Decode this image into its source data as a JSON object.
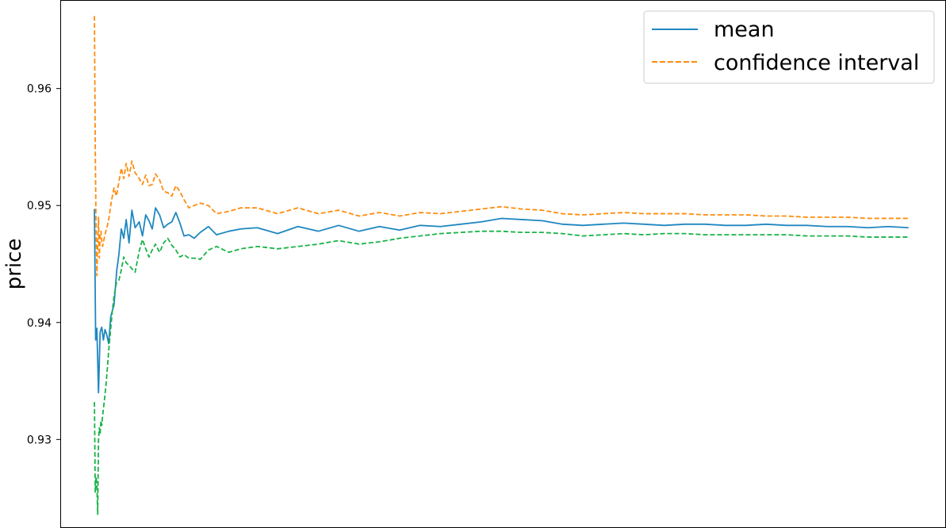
{
  "chart_data": {
    "type": "line",
    "title": "",
    "xlabel": "",
    "ylabel": "price",
    "ylim": [
      0.9225,
      0.9675
    ],
    "xlim": [
      -82,
      2090
    ],
    "yticks": [
      "0.93",
      "0.94",
      "0.95",
      "0.96"
    ],
    "xticks_visible": false,
    "grid": false,
    "legend_placement": "top-right",
    "colors": {
      "mean": "#1f87c0",
      "confidence_interval": "#ff8c0e",
      "lower_interval": "#19b347"
    },
    "series": [
      {
        "name": "mean",
        "style": "solid",
        "x": [
          0,
          3,
          6,
          10,
          14,
          18,
          22,
          26,
          30,
          35,
          40,
          48,
          55,
          60,
          66,
          72,
          78,
          85,
          92,
          100,
          110,
          118,
          126,
          134,
          142,
          150,
          160,
          170,
          180,
          190,
          200,
          210,
          220,
          232,
          245,
          260,
          280,
          300,
          330,
          360,
          400,
          450,
          500,
          550,
          600,
          650,
          700,
          750,
          800,
          850,
          900,
          950,
          1000,
          1050,
          1100,
          1150,
          1200,
          1250,
          1300,
          1350,
          1400,
          1450,
          1500,
          1550,
          1600,
          1650,
          1700,
          1750,
          1800,
          1850,
          1900,
          1950,
          2000
        ],
        "y": [
          0.9497,
          0.9385,
          0.9395,
          0.934,
          0.9392,
          0.9396,
          0.9385,
          0.9394,
          0.939,
          0.9382,
          0.9405,
          0.9415,
          0.9445,
          0.9458,
          0.948,
          0.9472,
          0.9488,
          0.9468,
          0.9496,
          0.9481,
          0.9486,
          0.9474,
          0.9492,
          0.9487,
          0.948,
          0.9498,
          0.9492,
          0.9481,
          0.9484,
          0.9486,
          0.9494,
          0.9485,
          0.9474,
          0.9475,
          0.9472,
          0.9477,
          0.9482,
          0.9475,
          0.9478,
          0.948,
          0.9481,
          0.9476,
          0.9482,
          0.9478,
          0.9483,
          0.9478,
          0.9482,
          0.9479,
          0.9483,
          0.9482,
          0.9484,
          0.9486,
          0.9489,
          0.9488,
          0.9487,
          0.9484,
          0.9483,
          0.9484,
          0.9485,
          0.9484,
          0.9483,
          0.9484,
          0.9484,
          0.9483,
          0.9483,
          0.9484,
          0.9483,
          0.9483,
          0.9482,
          0.9482,
          0.9481,
          0.9482,
          0.9481
        ]
      },
      {
        "name": "confidence interval",
        "style": "dashed",
        "x": [
          0,
          2,
          4,
          6,
          8,
          10,
          12,
          14,
          16,
          18,
          20,
          24,
          28,
          32,
          36,
          40,
          44,
          48,
          54,
          60,
          66,
          72,
          78,
          85,
          92,
          100,
          110,
          118,
          126,
          134,
          142,
          150,
          160,
          170,
          180,
          190,
          200,
          210,
          220,
          232,
          245,
          260,
          280,
          300,
          330,
          360,
          400,
          450,
          500,
          550,
          600,
          650,
          700,
          750,
          800,
          850,
          900,
          950,
          1000,
          1050,
          1100,
          1150,
          1200,
          1250,
          1300,
          1350,
          1400,
          1450,
          1500,
          1550,
          1600,
          1650,
          1700,
          1750,
          1800,
          1850,
          1900,
          1950,
          2000
        ],
        "y": [
          0.9662,
          0.955,
          0.948,
          0.944,
          0.9468,
          0.949,
          0.9455,
          0.9475,
          0.9478,
          0.947,
          0.9465,
          0.9472,
          0.9478,
          0.9483,
          0.949,
          0.95,
          0.9508,
          0.9515,
          0.9508,
          0.952,
          0.9532,
          0.9523,
          0.9536,
          0.9525,
          0.9538,
          0.9528,
          0.9523,
          0.9518,
          0.9526,
          0.9517,
          0.9518,
          0.9527,
          0.9522,
          0.9512,
          0.9511,
          0.9508,
          0.9517,
          0.9512,
          0.9505,
          0.9498,
          0.95,
          0.9502,
          0.95,
          0.9493,
          0.9495,
          0.9498,
          0.9498,
          0.9493,
          0.9498,
          0.9493,
          0.9496,
          0.9491,
          0.9494,
          0.9491,
          0.9494,
          0.9493,
          0.9495,
          0.9497,
          0.9499,
          0.9497,
          0.9496,
          0.9493,
          0.9492,
          0.9493,
          0.9494,
          0.9493,
          0.9493,
          0.9493,
          0.9492,
          0.9492,
          0.9492,
          0.9491,
          0.9491,
          0.949,
          0.949,
          0.949,
          0.9489,
          0.9489,
          0.9489
        ]
      },
      {
        "style": "dashed",
        "x": [
          0,
          2,
          4,
          6,
          8,
          10,
          12,
          14,
          16,
          18,
          20,
          24,
          28,
          32,
          36,
          40,
          44,
          48,
          54,
          60,
          66,
          72,
          78,
          85,
          92,
          100,
          110,
          118,
          126,
          134,
          142,
          150,
          160,
          170,
          180,
          190,
          200,
          210,
          220,
          232,
          245,
          260,
          280,
          300,
          330,
          360,
          400,
          450,
          500,
          550,
          600,
          650,
          700,
          750,
          800,
          850,
          900,
          950,
          1000,
          1050,
          1100,
          1150,
          1200,
          1250,
          1300,
          1350,
          1400,
          1450,
          1500,
          1550,
          1600,
          1650,
          1700,
          1750,
          1800,
          1850,
          1900,
          1950,
          2000
        ],
        "y": [
          0.9332,
          0.9255,
          0.9268,
          0.9262,
          0.9236,
          0.93,
          0.931,
          0.9305,
          0.9316,
          0.9312,
          0.932,
          0.9332,
          0.9345,
          0.9362,
          0.938,
          0.9395,
          0.941,
          0.9422,
          0.9434,
          0.9436,
          0.9445,
          0.9456,
          0.9451,
          0.9449,
          0.9446,
          0.9443,
          0.9461,
          0.9471,
          0.9463,
          0.9456,
          0.9462,
          0.9467,
          0.946,
          0.9468,
          0.9472,
          0.9466,
          0.9462,
          0.9456,
          0.9458,
          0.9455,
          0.9455,
          0.9454,
          0.9462,
          0.9465,
          0.946,
          0.9463,
          0.9465,
          0.9463,
          0.9465,
          0.9467,
          0.947,
          0.9467,
          0.9469,
          0.9472,
          0.9474,
          0.9476,
          0.9477,
          0.9478,
          0.9478,
          0.9477,
          0.9477,
          0.9476,
          0.9474,
          0.9475,
          0.9476,
          0.9475,
          0.9476,
          0.9476,
          0.9475,
          0.9475,
          0.9475,
          0.9475,
          0.9475,
          0.9474,
          0.9474,
          0.9474,
          0.9473,
          0.9473,
          0.9473
        ]
      }
    ]
  }
}
